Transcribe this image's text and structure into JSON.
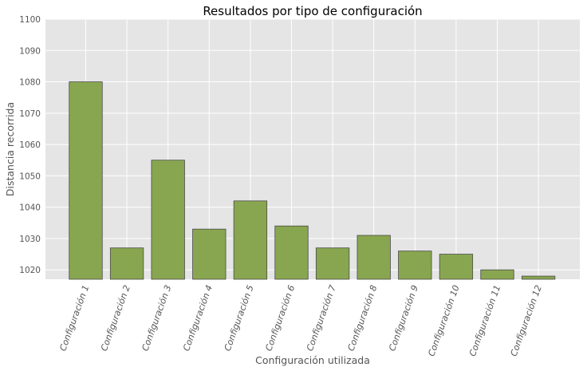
{
  "chart_data": {
    "type": "bar",
    "title": "Resultados por tipo de configuración",
    "xlabel": "Configuración utilizada",
    "ylabel": "Distancia recorrida",
    "categories": [
      "Configuración 1",
      "Configuración 2",
      "Configuración 3",
      "Configuración 4",
      "Configuración 5",
      "Configuración 6",
      "Configuración 7",
      "Configuración 8",
      "Configuración 9",
      "Configuración 10",
      "Configuración 11",
      "Configuración 12"
    ],
    "values": [
      1080,
      1027,
      1055,
      1033,
      1042,
      1034,
      1027,
      1031,
      1026,
      1025,
      1020,
      1018
    ],
    "ylim": [
      1017,
      1100
    ],
    "yticks": [
      1020,
      1030,
      1040,
      1050,
      1060,
      1070,
      1080,
      1090,
      1100
    ],
    "grid": true,
    "colors": {
      "bar": "#88a64f",
      "background": "#e5e5e5"
    }
  }
}
